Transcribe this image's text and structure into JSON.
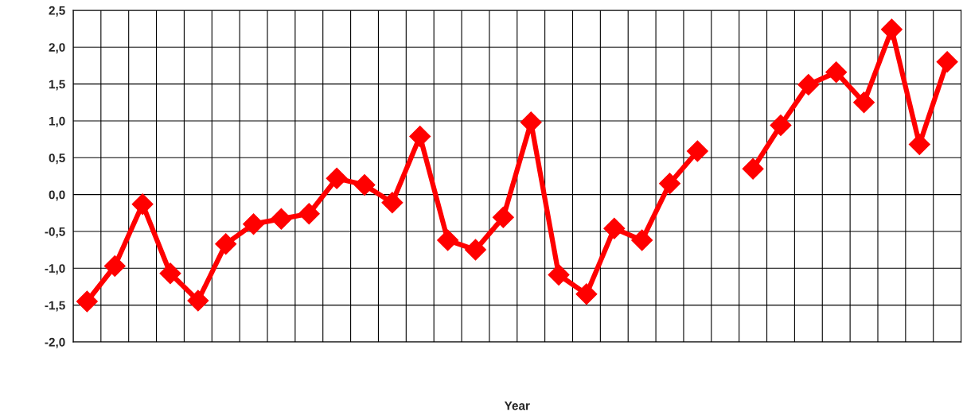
{
  "chart_data": {
    "type": "line",
    "xlabel": "Year",
    "categories": [
      null,
      null,
      null,
      null,
      null,
      null,
      null,
      null,
      null,
      null,
      null,
      null,
      null,
      null,
      null,
      null,
      null,
      null,
      null,
      null,
      null,
      null,
      null,
      null,
      null,
      null,
      null,
      null,
      null,
      null,
      null,
      null
    ],
    "series": [
      {
        "color": "#ff0000",
        "values": [
          -1.45,
          -0.97,
          -0.13,
          -1.07,
          -1.44,
          -0.67,
          -0.4,
          -0.33,
          -0.26,
          0.22,
          0.13,
          -0.11,
          0.79,
          -0.62,
          -0.75,
          -0.31,
          0.98,
          -1.09,
          -1.35,
          -0.46,
          -0.62,
          0.15,
          0.59,
          null,
          null,
          null,
          null,
          null,
          null,
          null,
          null,
          null
        ]
      },
      {
        "color": "#ff0000",
        "values": [
          null,
          null,
          null,
          null,
          null,
          null,
          null,
          null,
          null,
          null,
          null,
          null,
          null,
          null,
          null,
          null,
          null,
          null,
          null,
          null,
          null,
          null,
          null,
          null,
          0.35,
          0.94,
          1.49,
          1.66,
          1.25,
          2.24,
          0.68,
          1.8
        ]
      }
    ],
    "ylim": [
      -2.0,
      2.5
    ],
    "yticks": [
      {
        "value": -2.0,
        "label": "-2,0"
      },
      {
        "value": -1.5,
        "label": "-1,5"
      },
      {
        "value": -1.0,
        "label": "-1,0"
      },
      {
        "value": -0.5,
        "label": "-0,5"
      },
      {
        "value": 0.0,
        "label": "0,0"
      },
      {
        "value": 0.5,
        "label": "0,5"
      },
      {
        "value": 1.0,
        "label": "1,0"
      },
      {
        "value": 1.5,
        "label": "1,5"
      },
      {
        "value": 2.0,
        "label": "2,0"
      },
      {
        "value": 2.5,
        "label": "2,5"
      }
    ],
    "grid": true,
    "marker": "diamond",
    "line_style": "solid",
    "legend": false
  }
}
